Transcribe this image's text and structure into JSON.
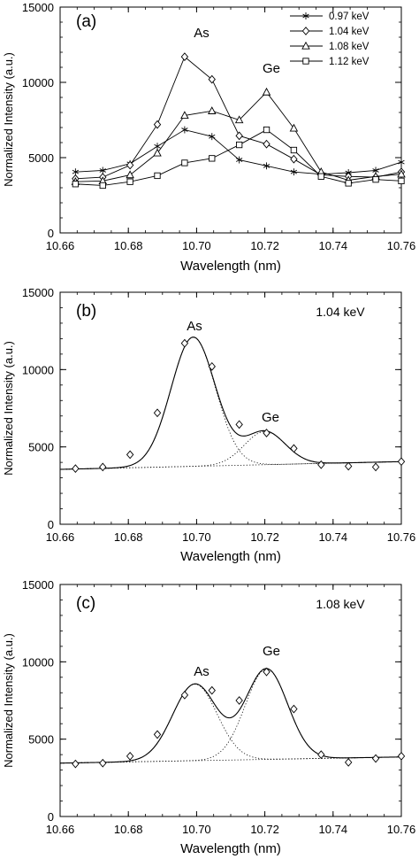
{
  "chart_data": [
    {
      "type": "line",
      "panel_label": "(a)",
      "xlabel": "Wavelength (nm)",
      "ylabel": "Normalized Intensity (a.u.)",
      "xlim": [
        10.66,
        10.76
      ],
      "ylim": [
        0,
        15000
      ],
      "x_ticks": [
        "10.66",
        "10.68",
        "10.70",
        "10.72",
        "10.74",
        "10.76"
      ],
      "y_ticks": [
        "0",
        "5000",
        "10000",
        "15000"
      ],
      "grid": false,
      "legend": "top-right",
      "x": [
        10.6645,
        10.6725,
        10.6805,
        10.6885,
        10.6965,
        10.7045,
        10.7125,
        10.7205,
        10.7285,
        10.7365,
        10.7445,
        10.7525,
        10.76
      ],
      "series": [
        {
          "name": "0.97 keV",
          "marker": "asterisk",
          "values": [
            4050,
            4150,
            4600,
            5750,
            6850,
            6400,
            4850,
            4450,
            4050,
            3900,
            4000,
            4150,
            4700
          ]
        },
        {
          "name": "1.04 keV",
          "marker": "diamond",
          "values": [
            3600,
            3700,
            4500,
            7200,
            11700,
            10200,
            6450,
            5900,
            4900,
            3850,
            3750,
            3700,
            4050
          ]
        },
        {
          "name": "1.08 keV",
          "marker": "triangle",
          "values": [
            3400,
            3450,
            3850,
            5300,
            7800,
            8100,
            7500,
            9350,
            6950,
            4050,
            3500,
            3750,
            3900
          ]
        },
        {
          "name": "1.12 keV",
          "marker": "square",
          "values": [
            3250,
            3150,
            3400,
            3800,
            4650,
            4950,
            5850,
            6850,
            5500,
            3750,
            3300,
            3550,
            3450
          ]
        }
      ],
      "annotations": [
        "As",
        "Ge"
      ]
    },
    {
      "type": "line",
      "panel_label": "(b)",
      "energy_label": "1.04 keV",
      "xlabel": "Wavelength (nm)",
      "ylabel": "Normalized Intensity (a.u.)",
      "xlim": [
        10.66,
        10.76
      ],
      "ylim": [
        0,
        15000
      ],
      "x_ticks": [
        "10.66",
        "10.68",
        "10.70",
        "10.72",
        "10.74",
        "10.76"
      ],
      "y_ticks": [
        "0",
        "5000",
        "10000",
        "15000"
      ],
      "grid": false,
      "points": {
        "x": [
          10.6645,
          10.6725,
          10.6805,
          10.6885,
          10.6965,
          10.7045,
          10.7125,
          10.7205,
          10.7285,
          10.7365,
          10.7445,
          10.7525,
          10.76
        ],
        "y": [
          3600,
          3700,
          4500,
          7200,
          11700,
          10200,
          6450,
          5900,
          4900,
          3850,
          3750,
          3700,
          4050
        ]
      },
      "fit": {
        "baseline": [
          3550,
          4050
        ],
        "peaks": [
          {
            "name": "As",
            "center": 10.699,
            "amplitude": 8350,
            "sigma": 0.0065
          },
          {
            "name": "Ge",
            "center": 10.72,
            "amplitude": 2150,
            "sigma": 0.006
          }
        ]
      },
      "annotations": [
        "As",
        "Ge"
      ]
    },
    {
      "type": "line",
      "panel_label": "(c)",
      "energy_label": "1.08 keV",
      "xlabel": "Wavelength (nm)",
      "ylabel": "Normalized Intensity (a.u.)",
      "xlim": [
        10.66,
        10.76
      ],
      "ylim": [
        0,
        15000
      ],
      "x_ticks": [
        "10.66",
        "10.68",
        "10.70",
        "10.72",
        "10.74",
        "10.76"
      ],
      "y_ticks": [
        "0",
        "5000",
        "10000",
        "15000"
      ],
      "grid": false,
      "points": {
        "x": [
          10.6645,
          10.6725,
          10.6805,
          10.6885,
          10.6965,
          10.7045,
          10.7125,
          10.7205,
          10.7285,
          10.7365,
          10.7445,
          10.7525,
          10.76
        ],
        "y": [
          3400,
          3450,
          3900,
          5300,
          7850,
          8150,
          7500,
          9350,
          6950,
          4000,
          3500,
          3750,
          3900
        ]
      },
      "fit": {
        "baseline": [
          3450,
          3850
        ],
        "peaks": [
          {
            "name": "As",
            "center": 10.6995,
            "amplitude": 4950,
            "sigma": 0.0065
          },
          {
            "name": "Ge",
            "center": 10.7205,
            "amplitude": 5850,
            "sigma": 0.0062
          }
        ]
      },
      "annotations": [
        "As",
        "Ge"
      ]
    }
  ]
}
